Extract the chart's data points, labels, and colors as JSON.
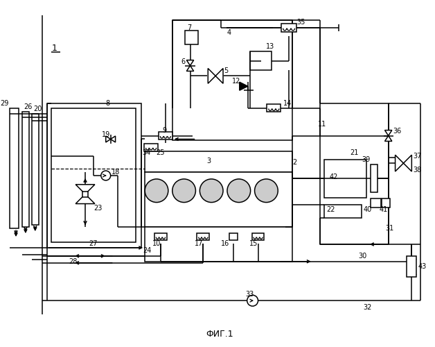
{
  "title": "ФИГ.1",
  "bg_color": "#ffffff",
  "line_color": "#000000",
  "fig_width": 6.28,
  "fig_height": 5.0,
  "dpi": 100
}
